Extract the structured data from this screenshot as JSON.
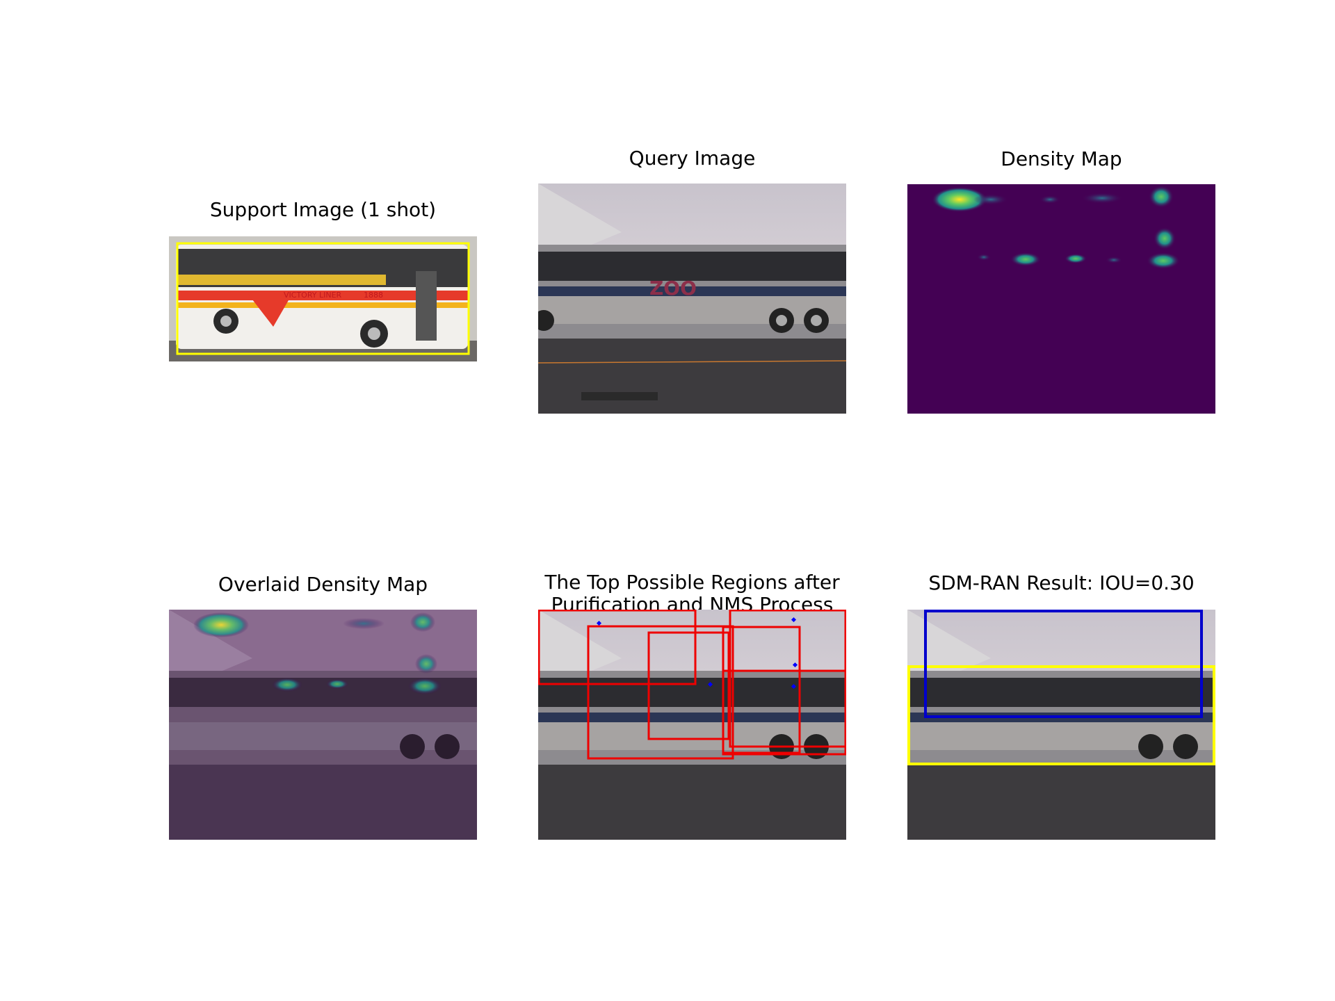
{
  "panels": [
    {
      "title": "Support Image (1 shot)"
    },
    {
      "title": "Query Image"
    },
    {
      "title": "Density Map"
    },
    {
      "title": "Overlaid Density Map"
    },
    {
      "title": "The Top Possible Regions after\nPurification and NMS Process"
    },
    {
      "title": "SDM-RAN Result: IOU=0.30"
    }
  ],
  "support_bus_text": {
    "brand": "VICTORY LINER",
    "number": "1888"
  },
  "query_bus_text": {
    "ad": "ZOO"
  },
  "result": {
    "iou": 0.3
  },
  "colors": {
    "ground_truth_box": "#ffff00",
    "prediction_box": "#0000cc",
    "region_boxes": "#ee0000",
    "peak_points": "#0000ff",
    "density_background": "#440154",
    "density_mid": "#21918c",
    "density_high": "#fde725"
  }
}
